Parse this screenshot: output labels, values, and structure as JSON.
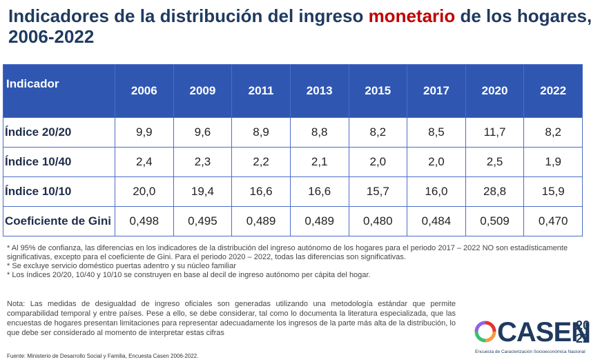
{
  "title": {
    "part1": "Indicadores de la distribución del ingreso ",
    "highlight": "monetario",
    "part2": " de los hogares, 2006-2022"
  },
  "table": {
    "header": [
      "Indicador",
      "2006",
      "2009",
      "2011",
      "2013",
      "2015",
      "2017",
      "2020",
      "2022"
    ],
    "rows": [
      {
        "label": "Índice 20/20",
        "values": [
          "9,9",
          "9,6",
          "8,9",
          "8,8",
          "8,2",
          "8,5",
          "11,7",
          "8,2"
        ]
      },
      {
        "label": "Índice 10/40",
        "values": [
          "2,4",
          "2,3",
          "2,2",
          "2,1",
          "2,0",
          "2,0",
          "2,5",
          "1,9"
        ]
      },
      {
        "label": "Índice 10/10",
        "values": [
          "20,0",
          "19,4",
          "16,6",
          "16,6",
          "15,7",
          "16,0",
          "28,8",
          "15,9"
        ]
      },
      {
        "label": "Coeficiente de Gini",
        "values": [
          "0,498",
          "0,495",
          "0,489",
          "0,489",
          "0,480",
          "0,484",
          "0,509",
          "0,470"
        ]
      }
    ]
  },
  "notes": [
    "* Al 95% de confianza, las diferencias en los indicadores de la distribución del ingreso autónomo de los hogares para el periodo 2017 – 2022 NO son estadísticamente significativas, excepto para el coeficiente de Gini. Para el periodo 2020 – 2022, todas las diferencias son significativas.",
    "* Se excluye servicio doméstico puertas adentro y su núcleo familiar",
    "* Los índices 20/20, 10/40 y 10/10 se construyen en base al decil de ingreso autónomo per cápita del hogar."
  ],
  "nota": "Nota: Las medidas de desigualdad de ingreso oficiales son generadas utilizando una metodología estándar que permite comparabilidad temporal y entre países. Pese a ello, se debe considerar, tal como lo documenta la literatura especializada, que las encuestas de hogares presentan limitaciones para representar adecuadamente los ingresos de la parte más alta de la distribución, lo que debe ser considerado al momento de interpretar estas cifras",
  "fuente": "Fuente: Ministerio de Desarrollo Social y Familia, Encuesta Casen 2006-2022.",
  "logo": {
    "word": "CASEN",
    "year_top": "20",
    "year_bottom": "22",
    "subtitle": "Encuesta de Caracterización Socioeconómica Nacional",
    "colors": [
      "#e3342f",
      "#f6993f",
      "#38c172",
      "#3490dc",
      "#9561e2"
    ]
  }
}
